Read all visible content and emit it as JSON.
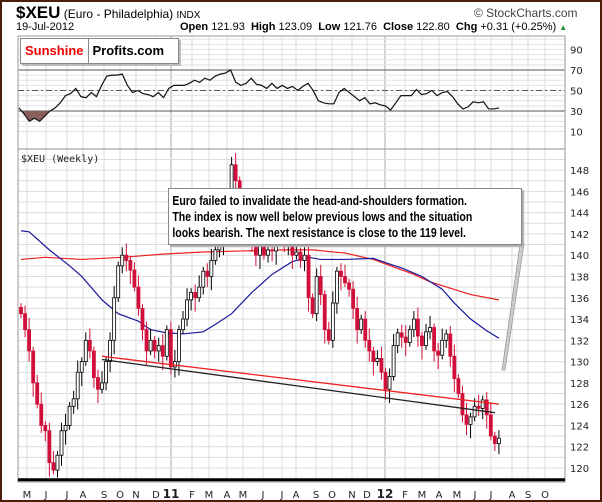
{
  "header": {
    "symbol": "$XEU",
    "name": "(Euro - Philadelphia)",
    "exchange": "INDX",
    "copyright": "© StockCharts.com",
    "date": "19-Jul-2012",
    "open_label": "Open",
    "open": "121.93",
    "high_label": "High",
    "high": "123.09",
    "low_label": "Low",
    "low": "121.76",
    "close_label": "Close",
    "close": "122.80",
    "chg_label": "Chg",
    "chg": "+0.31 (+0.25%)",
    "up_icon": "▲"
  },
  "logo": {
    "part1": "Sunshine",
    "part2": "Profits.com"
  },
  "annotation": [
    "Euro failed to invalidate the head-and-shoulders formation.",
    "The index is now well below previous lows and the situation",
    "looks bearish. The next resistance is close to the 119 level."
  ],
  "colors": {
    "up": "#000000",
    "down": "#d0103a",
    "ma_short": "#1a1a9a",
    "ma_long": "#ee2020",
    "rsi_fill": "#8b5e5e",
    "border": "#4a1e08"
  },
  "chart_data": {
    "type": "candlestick",
    "title": "$XEU (Weekly)",
    "price_axis": {
      "ticks": [
        120,
        122,
        124,
        126,
        128,
        130,
        132,
        134,
        136,
        138,
        140,
        142,
        144,
        146,
        148
      ],
      "range": [
        119,
        150
      ]
    },
    "x_ticks": [
      "M",
      "J",
      "J",
      "A",
      "S",
      "O",
      "N",
      "D",
      "11",
      "F",
      "M",
      "A",
      "M",
      "J",
      "J",
      "A",
      "S",
      "O",
      "N",
      "D",
      "12",
      "F",
      "M",
      "A",
      "M",
      "J",
      "J",
      "A",
      "S",
      "O"
    ],
    "closes": [
      134.5,
      133,
      131,
      128,
      126,
      124,
      123.5,
      120.5,
      119.8,
      121.2,
      123.5,
      124,
      125.8,
      126.5,
      129,
      130,
      132,
      131,
      128.5,
      127.4,
      128,
      130,
      132,
      136,
      139,
      140,
      139.5,
      138.6,
      137,
      135,
      133,
      131,
      132,
      131,
      131.5,
      130.5,
      133,
      129.5,
      130,
      133,
      134,
      135.8,
      136.5,
      136,
      137,
      138.5,
      138,
      139.5,
      140.5,
      141,
      142.5,
      144,
      148.5,
      147,
      145.5,
      143,
      142,
      141,
      140,
      141.3,
      140,
      140.5,
      140.4,
      141.5,
      142,
      141,
      141,
      140,
      140.3,
      139.5,
      140,
      136,
      134.5,
      138,
      136.3,
      133,
      132,
      135.5,
      138.5,
      138,
      137.4,
      136.8,
      135,
      133,
      134,
      132,
      131,
      130,
      130.3,
      129,
      127.4,
      128.6,
      131.5,
      132.7,
      132.3,
      131.8,
      133,
      134,
      132.4,
      131.5,
      132.8,
      133.2,
      131,
      130.6,
      132,
      132.6,
      130.5,
      128.4,
      127,
      125,
      124.1,
      124.8,
      125.8,
      125.6,
      126.4,
      125,
      123,
      122.3,
      122.8
    ],
    "ma_short": [
      [
        0,
        142.3
      ],
      [
        2,
        142.2
      ],
      [
        7,
        140.5
      ],
      [
        12,
        139
      ],
      [
        15,
        138
      ],
      [
        20,
        135.8
      ],
      [
        24,
        134.5
      ],
      [
        29,
        133.8
      ],
      [
        32,
        133
      ],
      [
        36,
        132.7
      ],
      [
        40,
        132.6
      ],
      [
        45,
        132.8
      ],
      [
        48,
        133.5
      ],
      [
        52,
        134.5
      ],
      [
        57,
        136.5
      ],
      [
        62,
        138.2
      ],
      [
        67,
        139.4
      ],
      [
        71,
        139.8
      ],
      [
        74,
        139.6
      ],
      [
        80,
        139.6
      ],
      [
        87,
        139.7
      ],
      [
        90,
        139.3
      ],
      [
        94,
        138.8
      ],
      [
        99,
        138
      ],
      [
        104,
        136.8
      ],
      [
        107,
        135.5
      ],
      [
        111,
        134
      ],
      [
        115,
        132.9
      ],
      [
        118,
        132.2
      ]
    ],
    "ma_long": [
      [
        0,
        139.6
      ],
      [
        6,
        139.8
      ],
      [
        15,
        139.6
      ],
      [
        25,
        139.8
      ],
      [
        35,
        140.1
      ],
      [
        45,
        140.3
      ],
      [
        55,
        140.4
      ],
      [
        65,
        140.5
      ],
      [
        72,
        140.5
      ],
      [
        80,
        140.2
      ],
      [
        87,
        139.6
      ],
      [
        92,
        138.9
      ],
      [
        97,
        138.2
      ],
      [
        101,
        137.5
      ],
      [
        106,
        136.9
      ],
      [
        111,
        136.3
      ],
      [
        118,
        135.8
      ]
    ],
    "trendlines": [
      {
        "name": "red-neckline",
        "from": [
          20,
          130.5
        ],
        "to": [
          118,
          126
        ]
      },
      {
        "name": "black-neckline",
        "from": [
          20,
          130.2
        ],
        "to": [
          117,
          125.2
        ]
      },
      {
        "name": "support-119",
        "value": 118.9
      }
    ],
    "rsi": {
      "ticks": [
        90,
        70,
        50,
        30,
        10
      ],
      "levels": [
        70,
        50,
        30
      ],
      "values": [
        33,
        27,
        20,
        23,
        20,
        25,
        30,
        33,
        38,
        45,
        47,
        52,
        44,
        43,
        48,
        44,
        55,
        64,
        65,
        65,
        66,
        55,
        48,
        50,
        47,
        46,
        44,
        48,
        43,
        52,
        55,
        55,
        55,
        57,
        60,
        58,
        62,
        60,
        64,
        66,
        67,
        70,
        58,
        55,
        57,
        62,
        56,
        55,
        52,
        57,
        52,
        55,
        52,
        54,
        50,
        54,
        57,
        50,
        40,
        38,
        37,
        37,
        48,
        52,
        48,
        44,
        40,
        43,
        37,
        38,
        36,
        35,
        31,
        38,
        45,
        45,
        45,
        51,
        46,
        47,
        50,
        45,
        48,
        49,
        44,
        37,
        32,
        34,
        39,
        38,
        39,
        32,
        32,
        33
      ]
    }
  }
}
